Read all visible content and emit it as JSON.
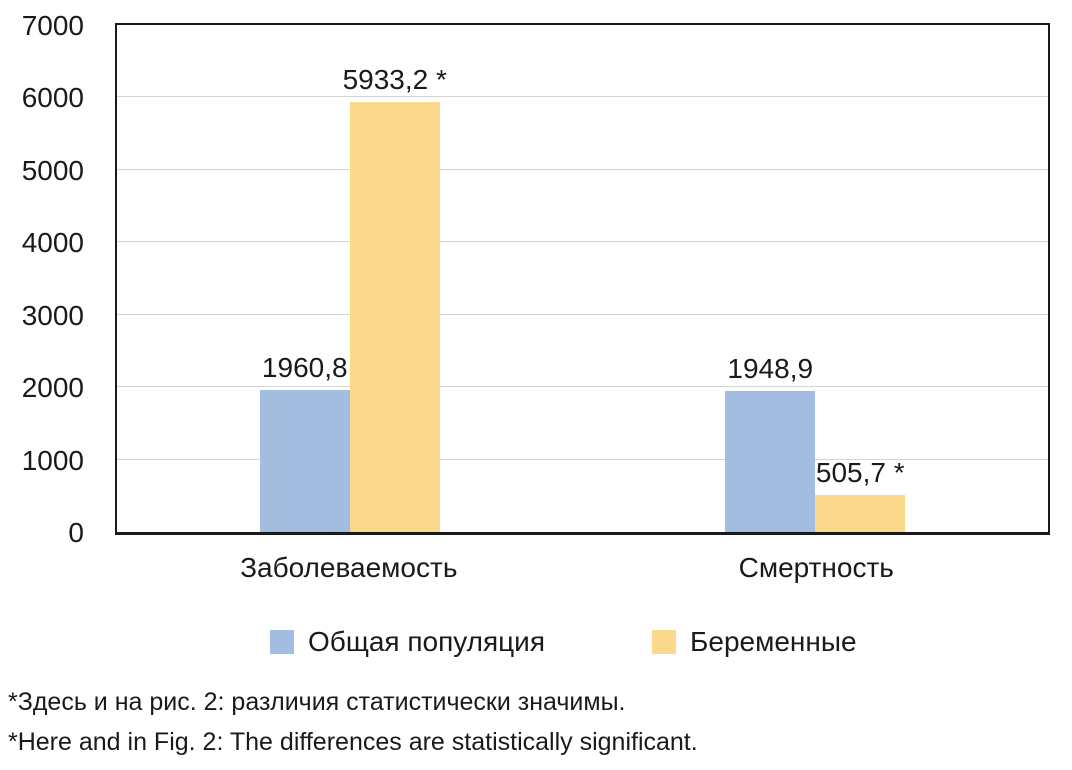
{
  "chart_data": {
    "type": "bar",
    "categories": [
      "Заболеваемость",
      "Смертность"
    ],
    "series": [
      {
        "name": "Общая популяция",
        "color": "#A3BDE0",
        "values": [
          1960.8,
          1948.9
        ],
        "value_labels": [
          "1960,8",
          "1948,9"
        ]
      },
      {
        "name": "Беременные",
        "color": "#FBD98C",
        "values": [
          5933.2,
          505.7
        ],
        "value_labels": [
          "5933,2 *",
          "505,7 *"
        ]
      }
    ],
    "ylim": [
      0,
      7000
    ],
    "yticks": [
      0,
      1000,
      2000,
      3000,
      4000,
      5000,
      6000,
      7000
    ],
    "grid": "horizontal-major",
    "grid_color": "#d4d4d4",
    "axis_color": "#1a1a1a",
    "legend_position": "bottom"
  },
  "footnotes": [
    "*Здесь и на рис. 2: различия статистически значимы.",
    "*Here and in Fig. 2: The differences are statistically significant."
  ]
}
